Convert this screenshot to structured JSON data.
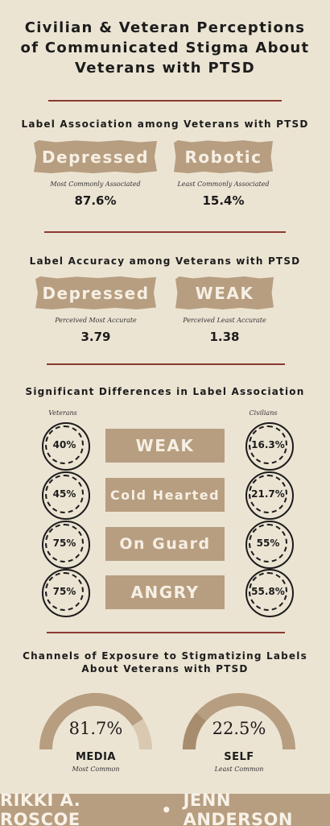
{
  "title": "Civilian & Veteran Perceptions\nof Communicated Stigma About\nVeterans with PTSD",
  "section1": {
    "heading": "Label Association among Veterans with PTSD",
    "left": {
      "label": "Depressed",
      "caption": "Most Commonly Associated",
      "value": "87.6%"
    },
    "right": {
      "label": "Robotic",
      "caption": "Least Commonly Associated",
      "value": "15.4%"
    }
  },
  "section2": {
    "heading": "Label Accuracy among Veterans with PTSD",
    "left": {
      "label": "Depressed",
      "caption": "Perceived Most Accurate",
      "value": "3.79"
    },
    "right": {
      "label": "WEAK",
      "caption": "Perceived Least Accurate",
      "value": "1.38"
    }
  },
  "section3": {
    "heading": "Significant Differences in Label Association",
    "veterans_label": "Veterans",
    "civilians_label": "Civilians",
    "rows": [
      {
        "label": "WEAK",
        "veterans": "40%",
        "civilians": "16.3%"
      },
      {
        "label": "Cold Hearted",
        "veterans": "45%",
        "civilians": "21.7%"
      },
      {
        "label": "On Guard",
        "veterans": "75%",
        "civilians": "55%"
      },
      {
        "label": "ANGRY",
        "veterans": "75%",
        "civilians": "55.8%"
      }
    ]
  },
  "section4": {
    "heading": "Channels of Exposure to Stigmatizing Labels\nAbout Veterans with PTSD",
    "gauges": [
      {
        "value": "81.7%",
        "fraction": 0.817,
        "name": "MEDIA",
        "caption": "Most Common"
      },
      {
        "value": "22.5%",
        "fraction": 0.225,
        "name": "SELF",
        "caption": "Least Common"
      }
    ]
  },
  "footer": {
    "author1": "RIKKI A. ROSCOE",
    "separator": "•",
    "author2": "JENN ANDERSON"
  },
  "colors": {
    "background": "#ece4d3",
    "tan": "#b79e80",
    "dark_tan": "#a78d6e",
    "rule": "#8a3a30",
    "text": "#1c1c1c"
  }
}
